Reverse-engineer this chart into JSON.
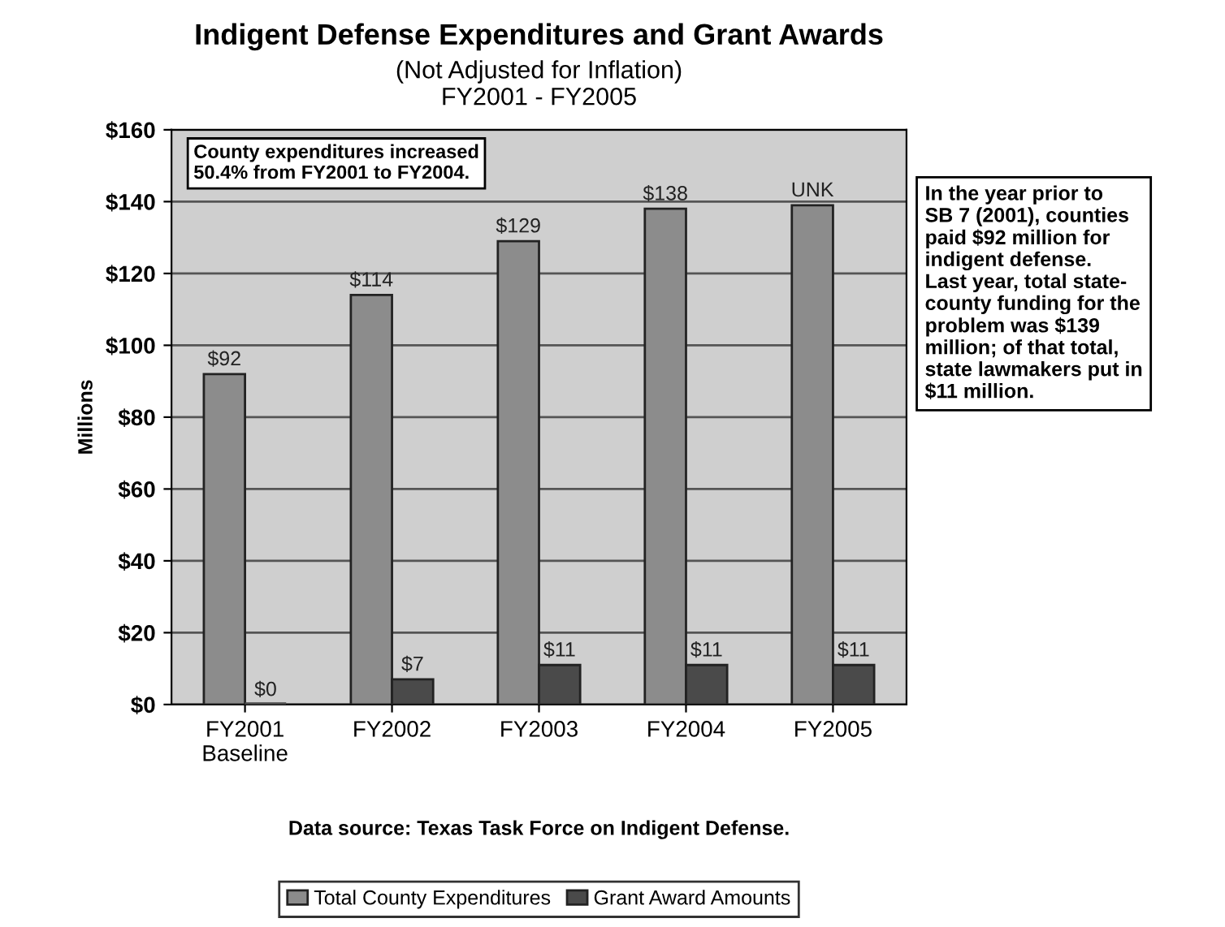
{
  "chart_data": {
    "type": "bar",
    "title": "Indigent Defense Expenditures and Grant Awards",
    "subtitle": "(Not Adjusted for Inflation)\nFY2001 - FY2005",
    "ylabel": "Millions",
    "categories": [
      "FY2001\nBaseline",
      "FY2002",
      "FY2003",
      "FY2004",
      "FY2005"
    ],
    "series": [
      {
        "name": "Total County Expenditures",
        "color": "#8c8c8c",
        "values": [
          92,
          114,
          129,
          138,
          139
        ],
        "value_labels": [
          "$92",
          "$114",
          "$129",
          "$138",
          "UNK"
        ]
      },
      {
        "name": "Grant Award Amounts",
        "color": "#4a4a4a",
        "values": [
          0,
          7,
          11,
          11,
          11
        ],
        "value_labels": [
          "$0",
          "$7",
          "$11",
          "$11",
          "$11"
        ]
      }
    ],
    "ylim": [
      0,
      160
    ],
    "yticks": [
      {
        "value": 0,
        "label": "$0"
      },
      {
        "value": 20,
        "label": "$20"
      },
      {
        "value": 40,
        "label": "$40"
      },
      {
        "value": 60,
        "label": "$60"
      },
      {
        "value": 80,
        "label": "$80"
      },
      {
        "value": 100,
        "label": "$100"
      },
      {
        "value": 120,
        "label": "$120"
      },
      {
        "value": 140,
        "label": "$140"
      },
      {
        "value": 160,
        "label": "$160"
      }
    ],
    "grid": "y",
    "legend": "bottom",
    "annotations": [
      "County expenditures increased\n50.4% from FY2001 to FY2004.",
      "In the year prior to\nSB 7 (2001), counties\npaid $92 million for\nindigent defense.\nLast year, total state-\ncounty funding for the\nproblem was $139\nmillion; of that total,\nstate lawmakers put in\n$11 million.",
      "Data source: Texas Task Force on Indigent Defense."
    ]
  }
}
